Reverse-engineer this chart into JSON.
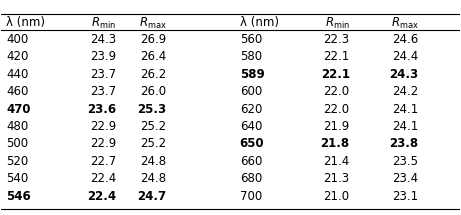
{
  "headers": [
    "λ (nm)",
    "R_min",
    "R_max",
    "λ (nm)",
    "R_min",
    "R_max"
  ],
  "left_data": [
    [
      "400",
      "24.3",
      "26.9",
      false
    ],
    [
      "420",
      "23.9",
      "26.4",
      false
    ],
    [
      "440",
      "23.7",
      "26.2",
      false
    ],
    [
      "460",
      "23.7",
      "26.0",
      false
    ],
    [
      "470",
      "23.6",
      "25.3",
      true
    ],
    [
      "480",
      "22.9",
      "25.2",
      false
    ],
    [
      "500",
      "22.9",
      "25.2",
      false
    ],
    [
      "520",
      "22.7",
      "24.8",
      false
    ],
    [
      "540",
      "22.4",
      "24.8",
      false
    ],
    [
      "546",
      "22.4",
      "24.7",
      true
    ]
  ],
  "right_data": [
    [
      "560",
      "22.3",
      "24.6",
      false
    ],
    [
      "580",
      "22.1",
      "24.4",
      false
    ],
    [
      "589",
      "22.1",
      "24.3",
      true
    ],
    [
      "600",
      "22.0",
      "24.2",
      false
    ],
    [
      "620",
      "22.0",
      "24.1",
      false
    ],
    [
      "640",
      "21.9",
      "24.1",
      false
    ],
    [
      "650",
      "21.8",
      "23.8",
      true
    ],
    [
      "660",
      "21.4",
      "23.5",
      false
    ],
    [
      "680",
      "21.3",
      "23.4",
      false
    ],
    [
      "700",
      "21.0",
      "23.1",
      false
    ]
  ],
  "bg_color": "#ffffff",
  "text_color": "#000000",
  "header_line_color": "#000000",
  "font_size": 8.5,
  "bold_font_size": 8.5
}
